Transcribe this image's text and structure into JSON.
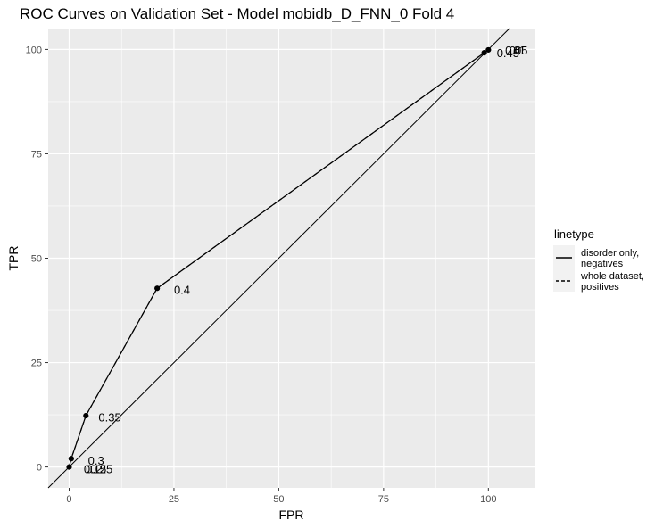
{
  "chart_data": {
    "type": "line",
    "title": "ROC Curves on Validation Set - Model mobidb_D_FNN_0 Fold 4",
    "xlabel": "FPR",
    "ylabel": "TPR",
    "xlim": [
      -5,
      111
    ],
    "ylim": [
      -5,
      105
    ],
    "xticks": [
      0,
      25,
      50,
      75,
      100
    ],
    "yticks": [
      0,
      25,
      50,
      75,
      100
    ],
    "xtick_labels": [
      "0",
      "25",
      "50",
      "75",
      "100"
    ],
    "ytick_labels": [
      "0",
      "25",
      "50",
      "75",
      "100"
    ],
    "grid": true,
    "background": "#ebebeb",
    "grid_color": "#ffffff",
    "diagonal_reference": true,
    "series": [
      {
        "linetype": "solid",
        "x": [
          0,
          0.5,
          4,
          21,
          99,
          100
        ],
        "y": [
          0,
          2,
          12.3,
          42.8,
          99.2,
          99.9
        ]
      },
      {
        "linetype": "dashed",
        "x": [
          0,
          0.5,
          4,
          21,
          99,
          100
        ],
        "y": [
          0,
          2,
          12.3,
          42.8,
          99.2,
          99.9
        ]
      }
    ],
    "threshold_labels": [
      {
        "text": "0.2",
        "x": 4,
        "y": -0.4
      },
      {
        "text": "0.25",
        "x": 5,
        "y": -0.4
      },
      {
        "text": "0.15",
        "x": 3.5,
        "y": -0.4
      },
      {
        "text": "0.3",
        "x": 4.5,
        "y": 1.6
      },
      {
        "text": "0.35",
        "x": 7,
        "y": 12
      },
      {
        "text": "0.4",
        "x": 25,
        "y": 42.5
      },
      {
        "text": "0.45",
        "x": 102,
        "y": 99.2
      },
      {
        "text": "0.05",
        "x": 104,
        "y": 99.9
      },
      {
        "text": "0.1",
        "x": 105,
        "y": 99.9
      },
      {
        "text": "0",
        "x": 106,
        "y": 99.9
      }
    ],
    "legend": {
      "title": "linetype",
      "position": "right",
      "entries": [
        {
          "label": [
            "disorder only,",
            "negatives"
          ],
          "linetype": "solid"
        },
        {
          "label": [
            "whole dataset,",
            "positives"
          ],
          "linetype": "dashed"
        }
      ]
    }
  }
}
